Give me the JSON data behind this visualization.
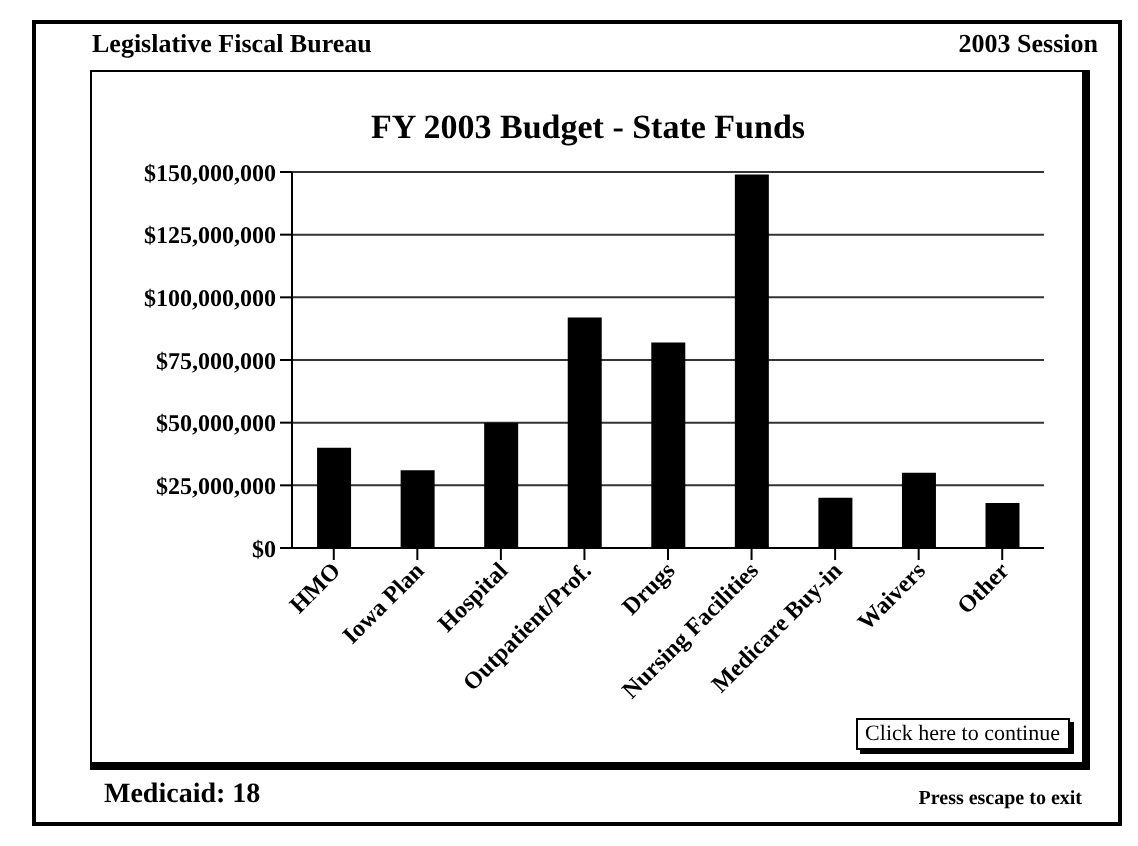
{
  "chart_data": {
    "type": "bar",
    "title": "FY 2003 Budget - State Funds",
    "categories": [
      "HMO",
      "Iowa Plan",
      "Hospital",
      "Outpatient/Prof.",
      "Drugs",
      "Nursing Facilities",
      "Medicare Buy-in",
      "Waivers",
      "Other"
    ],
    "values": [
      40000000,
      31000000,
      50000000,
      92000000,
      82000000,
      149000000,
      20000000,
      30000000,
      18000000
    ],
    "color": "#000000",
    "ylim": [
      0,
      150000000
    ],
    "yticks": [
      {
        "value": 0,
        "label": "$0"
      },
      {
        "value": 25000000,
        "label": "$25,000,000"
      },
      {
        "value": 50000000,
        "label": "$50,000,000"
      },
      {
        "value": 75000000,
        "label": "$75,000,000"
      },
      {
        "value": 100000000,
        "label": "$100,000,000"
      },
      {
        "value": 125000000,
        "label": "$125,000,000"
      },
      {
        "value": 150000000,
        "label": "$150,000,000"
      }
    ],
    "grid": "y",
    "annotations": [
      "Legislative Fiscal Bureau",
      "2003 Session",
      "Click here to continue",
      "Medicaid: 18",
      "Press escape to exit"
    ]
  }
}
